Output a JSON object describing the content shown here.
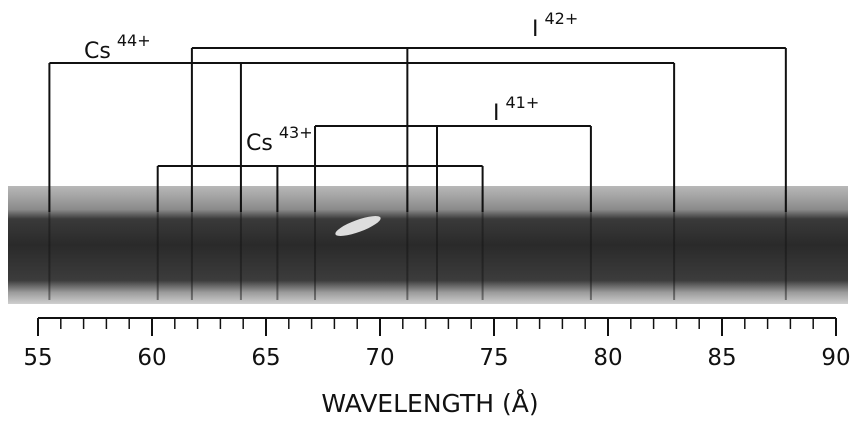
{
  "chart_data": {
    "type": "spectrum",
    "x_label": "WAVELENGTH (Å)",
    "xlim": [
      55,
      90
    ],
    "xticks": [
      55,
      60,
      65,
      70,
      75,
      80,
      85,
      90
    ],
    "minor_tick_step": 1,
    "color": "#111111",
    "groups": [
      {
        "element": "I",
        "charge": "42+",
        "lines": [
          61.75,
          71.2,
          87.8
        ]
      },
      {
        "element": "Cs",
        "charge": "44+",
        "lines": [
          55.5,
          63.9,
          82.9
        ]
      },
      {
        "element": "I",
        "charge": "41+",
        "lines": [
          67.15,
          72.5,
          79.25
        ]
      },
      {
        "element": "Cs",
        "charge": "43+",
        "lines": [
          60.25,
          65.5,
          74.5
        ]
      }
    ]
  }
}
